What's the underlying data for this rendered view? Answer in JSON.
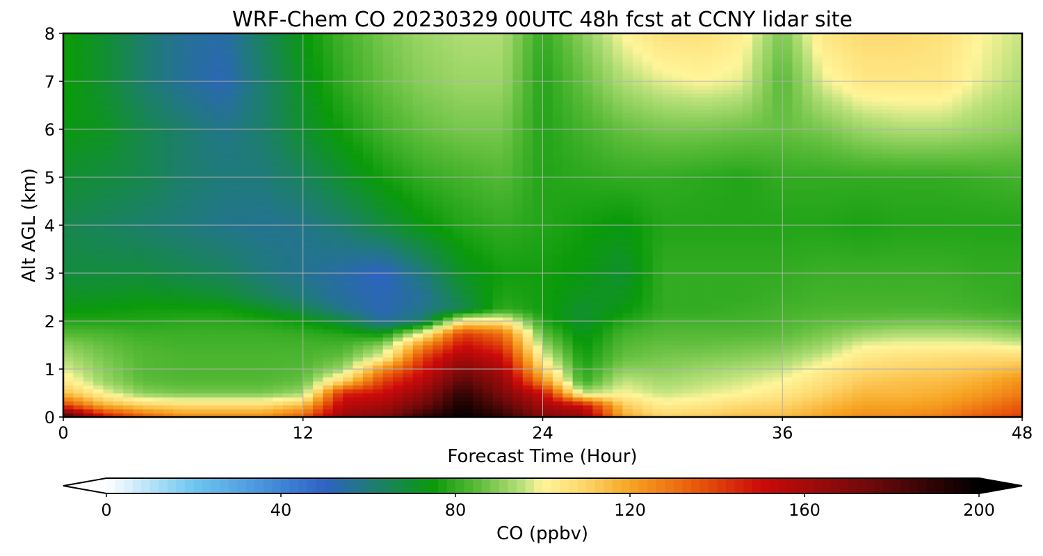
{
  "chart_data": {
    "type": "heatmap",
    "title": "WRF-Chem CO  20230329 00UTC 48h fcst at CCNY lidar site",
    "xlabel": "Forecast Time (Hour)",
    "ylabel": "Alt AGL (km)",
    "xlim": [
      0,
      48
    ],
    "ylim": [
      0,
      8
    ],
    "xticks": [
      0,
      12,
      24,
      36,
      48
    ],
    "yticks": [
      0,
      1,
      2,
      3,
      4,
      5,
      6,
      7,
      8
    ],
    "grid": true,
    "colorbar": {
      "label": "CO  (ppbv)",
      "min": 0,
      "max": 200,
      "ticks": [
        0,
        40,
        80,
        120,
        160,
        200
      ],
      "extend": "both",
      "orientation": "horizontal",
      "colormap": [
        {
          "v": 0,
          "c": "#ffffff"
        },
        {
          "v": 20,
          "c": "#6ec6f0"
        },
        {
          "v": 40,
          "c": "#3f86d6"
        },
        {
          "v": 50,
          "c": "#2f62c4"
        },
        {
          "v": 60,
          "c": "#1f7a7a"
        },
        {
          "v": 75,
          "c": "#0a9a0a"
        },
        {
          "v": 85,
          "c": "#5cbc3a"
        },
        {
          "v": 95,
          "c": "#b8e07a"
        },
        {
          "v": 100,
          "c": "#fff59a"
        },
        {
          "v": 110,
          "c": "#fdd468"
        },
        {
          "v": 120,
          "c": "#f7a423"
        },
        {
          "v": 135,
          "c": "#e85a0a"
        },
        {
          "v": 150,
          "c": "#cc0a0a"
        },
        {
          "v": 175,
          "c": "#6e0a0a"
        },
        {
          "v": 200,
          "c": "#000000"
        }
      ]
    },
    "x": [
      0,
      2,
      4,
      6,
      8,
      10,
      12,
      14,
      16,
      18,
      20,
      22,
      24,
      26,
      28,
      30,
      32,
      34,
      36,
      38,
      40,
      42,
      44,
      46,
      48
    ],
    "y": [
      0,
      0.25,
      0.5,
      0.75,
      1,
      1.25,
      1.5,
      1.75,
      2,
      2.25,
      2.5,
      3,
      4,
      5,
      6,
      7,
      8
    ],
    "z": [
      [
        190,
        150,
        135,
        125,
        125,
        125,
        135,
        165,
        170,
        190,
        200,
        190,
        170,
        165,
        120,
        110,
        112,
        115,
        115,
        120,
        125,
        125,
        128,
        135,
        140
      ],
      [
        140,
        118,
        110,
        108,
        108,
        108,
        115,
        155,
        160,
        175,
        195,
        180,
        160,
        150,
        112,
        102,
        104,
        108,
        110,
        115,
        120,
        120,
        122,
        128,
        135
      ],
      [
        115,
        100,
        90,
        88,
        88,
        88,
        92,
        145,
        150,
        165,
        190,
        170,
        150,
        95,
        100,
        96,
        98,
        100,
        104,
        110,
        116,
        116,
        118,
        122,
        128
      ],
      [
        104,
        92,
        85,
        84,
        84,
        84,
        86,
        110,
        140,
        155,
        180,
        165,
        125,
        80,
        96,
        93,
        95,
        97,
        100,
        106,
        112,
        114,
        115,
        118,
        124
      ],
      [
        98,
        90,
        84,
        83,
        83,
        83,
        84,
        92,
        125,
        148,
        170,
        158,
        110,
        78,
        90,
        90,
        92,
        94,
        96,
        102,
        108,
        110,
        111,
        113,
        116
      ],
      [
        94,
        88,
        84,
        83,
        83,
        83,
        83,
        86,
        100,
        140,
        160,
        150,
        100,
        76,
        86,
        88,
        89,
        90,
        92,
        97,
        104,
        106,
        107,
        108,
        108
      ],
      [
        90,
        86,
        83,
        82,
        82,
        82,
        82,
        82,
        90,
        125,
        150,
        140,
        92,
        74,
        84,
        86,
        86,
        87,
        88,
        92,
        99,
        100,
        100,
        100,
        98
      ],
      [
        84,
        83,
        81,
        81,
        81,
        81,
        80,
        78,
        74,
        100,
        140,
        130,
        85,
        72,
        82,
        84,
        84,
        84,
        85,
        88,
        92,
        94,
        94,
        93,
        90
      ],
      [
        78,
        78,
        78,
        79,
        79,
        78,
        75,
        68,
        55,
        62,
        105,
        105,
        78,
        70,
        78,
        82,
        82,
        82,
        83,
        85,
        86,
        87,
        87,
        86,
        84
      ],
      [
        74,
        75,
        76,
        76,
        76,
        72,
        66,
        58,
        52,
        58,
        66,
        80,
        76,
        70,
        74,
        80,
        80,
        81,
        82,
        83,
        83,
        83,
        83,
        82,
        81
      ],
      [
        72,
        72,
        73,
        72,
        70,
        65,
        60,
        55,
        52,
        56,
        68,
        78,
        76,
        72,
        72,
        80,
        80,
        80,
        81,
        82,
        82,
        82,
        82,
        81,
        80
      ],
      [
        68,
        68,
        68,
        66,
        64,
        60,
        57,
        54,
        50,
        60,
        72,
        76,
        76,
        74,
        70,
        80,
        80,
        80,
        80,
        81,
        81,
        81,
        81,
        80,
        80
      ],
      [
        66,
        64,
        62,
        60,
        58,
        57,
        58,
        62,
        68,
        74,
        78,
        80,
        78,
        76,
        74,
        78,
        78,
        78,
        78,
        78,
        77,
        78,
        78,
        78,
        78
      ],
      [
        70,
        68,
        66,
        62,
        60,
        60,
        64,
        70,
        76,
        80,
        82,
        84,
        78,
        79,
        80,
        80,
        79,
        78,
        80,
        80,
        80,
        80,
        80,
        81,
        82
      ],
      [
        74,
        72,
        66,
        62,
        58,
        62,
        70,
        76,
        82,
        86,
        88,
        88,
        78,
        82,
        86,
        88,
        88,
        87,
        86,
        88,
        92,
        94,
        94,
        92,
        90
      ],
      [
        76,
        70,
        62,
        56,
        52,
        62,
        72,
        80,
        86,
        90,
        92,
        92,
        78,
        86,
        94,
        98,
        100,
        98,
        84,
        98,
        104,
        104,
        104,
        98,
        94
      ],
      [
        76,
        70,
        62,
        56,
        54,
        64,
        74,
        82,
        88,
        92,
        94,
        94,
        80,
        90,
        100,
        106,
        106,
        102,
        88,
        104,
        108,
        108,
        106,
        100,
        96
      ]
    ]
  }
}
